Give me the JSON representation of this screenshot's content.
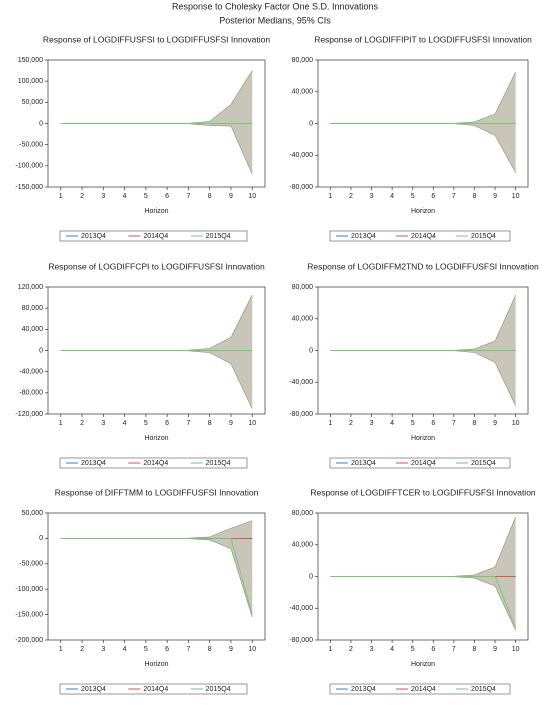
{
  "title": "Response to Cholesky Factor One S.D. Innovations",
  "subtitle": "Posterior Medians, 95% CIs",
  "chart_data": [
    {
      "type": "line",
      "title": "Response of LOGDIFFUSFSI to LOGDIFFUSFSI Innovation",
      "x_label": "Horizon",
      "x": [
        1,
        2,
        3,
        4,
        5,
        6,
        7,
        8,
        9,
        10
      ],
      "xlim": [
        0.4,
        10.6
      ],
      "xticks": [
        1,
        2,
        3,
        4,
        5,
        6,
        7,
        8,
        9,
        10
      ],
      "ylim": [
        -150000,
        150000
      ],
      "yticks": [
        {
          "value": -150000,
          "label": "-150,000"
        },
        {
          "value": -100000,
          "label": "-100,000"
        },
        {
          "value": -50000,
          "label": "-50,000"
        },
        0,
        {
          "value": 50000,
          "label": "50,000"
        },
        {
          "value": 100000,
          "label": "100,000"
        },
        {
          "value": 150000,
          "label": "150,000"
        }
      ],
      "band": {
        "color": "#c9c5b9",
        "upper": [
          0,
          0,
          0,
          0,
          0,
          0,
          500,
          5000,
          45000,
          125000
        ],
        "lower": [
          0,
          0,
          0,
          0,
          0,
          0,
          -500,
          -5000,
          -6000,
          -120000
        ]
      },
      "series": [
        {
          "name": "2013Q4",
          "color": "#3b7dd8",
          "values": [
            0,
            0,
            0,
            0,
            0,
            0,
            0,
            0,
            0,
            0
          ]
        },
        {
          "name": "2014Q4",
          "color": "#e0504f",
          "values": [
            0,
            0,
            0,
            0,
            0,
            0,
            0,
            0,
            0,
            0
          ]
        },
        {
          "name": "2015Q4",
          "color": "#6ccf6c",
          "values": [
            0,
            0,
            0,
            0,
            0,
            0,
            0,
            0,
            0,
            0
          ]
        }
      ]
    },
    {
      "type": "line",
      "title": "Response of LOGDIFFIPIT to LOGDIFFUSFSI Innovation",
      "x_label": "Horizon",
      "x": [
        1,
        2,
        3,
        4,
        5,
        6,
        7,
        8,
        9,
        10
      ],
      "xlim": [
        0.4,
        10.6
      ],
      "xticks": [
        1,
        2,
        3,
        4,
        5,
        6,
        7,
        8,
        9,
        10
      ],
      "ylim": [
        -80000,
        80000
      ],
      "yticks": [
        {
          "value": -80000,
          "label": "-80,000"
        },
        {
          "value": -40000,
          "label": "-40,000"
        },
        0,
        {
          "value": 40000,
          "label": "40,000"
        },
        {
          "value": 80000,
          "label": "80,000"
        }
      ],
      "band": {
        "color": "#c9c5b9",
        "upper": [
          0,
          0,
          0,
          0,
          0,
          0,
          300,
          2000,
          12000,
          65000
        ],
        "lower": [
          0,
          0,
          0,
          0,
          0,
          0,
          -300,
          -2500,
          -15000,
          -62000
        ]
      },
      "series": [
        {
          "name": "2013Q4",
          "color": "#3b7dd8",
          "values": [
            0,
            0,
            0,
            0,
            0,
            0,
            0,
            0,
            0,
            0
          ]
        },
        {
          "name": "2014Q4",
          "color": "#e0504f",
          "values": [
            0,
            0,
            0,
            0,
            0,
            0,
            0,
            0,
            0,
            0
          ]
        },
        {
          "name": "2015Q4",
          "color": "#6ccf6c",
          "values": [
            0,
            0,
            0,
            0,
            0,
            0,
            0,
            0,
            0,
            0
          ]
        }
      ]
    },
    {
      "type": "line",
      "title": "Response of LOGDIFFCPI to LOGDIFFUSFSI Innovation",
      "x_label": "Horizon",
      "x": [
        1,
        2,
        3,
        4,
        5,
        6,
        7,
        8,
        9,
        10
      ],
      "xlim": [
        0.4,
        10.6
      ],
      "xticks": [
        1,
        2,
        3,
        4,
        5,
        6,
        7,
        8,
        9,
        10
      ],
      "ylim": [
        -120000,
        120000
      ],
      "yticks": [
        {
          "value": -120000,
          "label": "-120,000"
        },
        {
          "value": -80000,
          "label": "-80,000"
        },
        {
          "value": -40000,
          "label": "-40,000"
        },
        0,
        {
          "value": 40000,
          "label": "40,000"
        },
        {
          "value": 80000,
          "label": "80,000"
        },
        {
          "value": 120000,
          "label": "120,000"
        }
      ],
      "band": {
        "color": "#c9c5b9",
        "upper": [
          0,
          0,
          0,
          0,
          0,
          0,
          500,
          4000,
          25000,
          105000
        ],
        "lower": [
          0,
          0,
          0,
          0,
          0,
          0,
          -500,
          -4000,
          -25000,
          -110000
        ]
      },
      "series": [
        {
          "name": "2013Q4",
          "color": "#3b7dd8",
          "values": [
            0,
            0,
            0,
            0,
            0,
            0,
            0,
            0,
            0,
            0
          ]
        },
        {
          "name": "2014Q4",
          "color": "#e0504f",
          "values": [
            0,
            0,
            0,
            0,
            0,
            0,
            0,
            0,
            0,
            0
          ]
        },
        {
          "name": "2015Q4",
          "color": "#6ccf6c",
          "values": [
            0,
            0,
            0,
            0,
            0,
            0,
            0,
            0,
            0,
            0
          ]
        }
      ]
    },
    {
      "type": "line",
      "title": "Response of LOGDIFFM2TND to LOGDIFFUSFSI Innovation",
      "x_label": "Horizon",
      "x": [
        1,
        2,
        3,
        4,
        5,
        6,
        7,
        8,
        9,
        10
      ],
      "xlim": [
        0.4,
        10.6
      ],
      "xticks": [
        1,
        2,
        3,
        4,
        5,
        6,
        7,
        8,
        9,
        10
      ],
      "ylim": [
        -80000,
        80000
      ],
      "yticks": [
        {
          "value": -80000,
          "label": "-80,000"
        },
        {
          "value": -40000,
          "label": "-40,000"
        },
        0,
        {
          "value": 40000,
          "label": "40,000"
        },
        {
          "value": 80000,
          "label": "80,000"
        }
      ],
      "band": {
        "color": "#c9c5b9",
        "upper": [
          0,
          0,
          0,
          0,
          0,
          0,
          300,
          2000,
          12000,
          70000
        ],
        "lower": [
          0,
          0,
          0,
          0,
          0,
          0,
          -300,
          -2500,
          -15000,
          -70000
        ]
      },
      "series": [
        {
          "name": "2013Q4",
          "color": "#3b7dd8",
          "values": [
            0,
            0,
            0,
            0,
            0,
            0,
            0,
            0,
            0,
            0
          ]
        },
        {
          "name": "2014Q4",
          "color": "#e0504f",
          "values": [
            0,
            0,
            0,
            0,
            0,
            0,
            0,
            0,
            0,
            0
          ]
        },
        {
          "name": "2015Q4",
          "color": "#6ccf6c",
          "values": [
            0,
            0,
            0,
            0,
            0,
            0,
            0,
            0,
            0,
            0
          ]
        }
      ]
    },
    {
      "type": "line",
      "title": "Response of DIFFTMM to LOGDIFFUSFSI Innovation",
      "x_label": "Horizon",
      "x": [
        1,
        2,
        3,
        4,
        5,
        6,
        7,
        8,
        9,
        10
      ],
      "xlim": [
        0.4,
        10.6
      ],
      "xticks": [
        1,
        2,
        3,
        4,
        5,
        6,
        7,
        8,
        9,
        10
      ],
      "ylim": [
        -200000,
        50000
      ],
      "yticks": [
        {
          "value": -200000,
          "label": "-200,000"
        },
        {
          "value": -150000,
          "label": "-150,000"
        },
        {
          "value": -100000,
          "label": "-100,000"
        },
        {
          "value": -50000,
          "label": "-50,000"
        },
        0,
        {
          "value": 50000,
          "label": "50,000"
        }
      ],
      "band": {
        "color": "#c9c5b9",
        "upper": [
          0,
          0,
          0,
          0,
          0,
          0,
          500,
          3000,
          20000,
          35000
        ],
        "lower": [
          0,
          0,
          0,
          0,
          0,
          0,
          -500,
          -3000,
          -20000,
          -155000
        ]
      },
      "series": [
        {
          "name": "2013Q4",
          "color": "#3b7dd8",
          "values": [
            0,
            0,
            0,
            0,
            0,
            0,
            0,
            0,
            0,
            0
          ]
        },
        {
          "name": "2014Q4",
          "color": "#e0504f",
          "values": [
            0,
            0,
            0,
            0,
            0,
            0,
            0,
            0,
            0,
            0
          ]
        },
        {
          "name": "2015Q4",
          "color": "#6ccf6c",
          "values": [
            0,
            0,
            0,
            0,
            0,
            0,
            0,
            0,
            0,
            -150000
          ]
        }
      ]
    },
    {
      "type": "line",
      "title": "Response of LOGDIFFTCER to LOGDIFFUSFSI Innovation",
      "x_label": "Horizon",
      "x": [
        1,
        2,
        3,
        4,
        5,
        6,
        7,
        8,
        9,
        10
      ],
      "xlim": [
        0.4,
        10.6
      ],
      "xticks": [
        1,
        2,
        3,
        4,
        5,
        6,
        7,
        8,
        9,
        10
      ],
      "ylim": [
        -80000,
        80000
      ],
      "yticks": [
        {
          "value": -80000,
          "label": "-80,000"
        },
        {
          "value": -40000,
          "label": "-40,000"
        },
        0,
        {
          "value": 40000,
          "label": "40,000"
        },
        {
          "value": 80000,
          "label": "80,000"
        }
      ],
      "band": {
        "color": "#c9c5b9",
        "upper": [
          0,
          0,
          0,
          0,
          0,
          0,
          300,
          2000,
          12000,
          75000
        ],
        "lower": [
          0,
          0,
          0,
          0,
          0,
          0,
          -300,
          -2000,
          -12000,
          -68000
        ]
      },
      "series": [
        {
          "name": "2013Q4",
          "color": "#3b7dd8",
          "values": [
            0,
            0,
            0,
            0,
            0,
            0,
            0,
            0,
            0,
            0
          ]
        },
        {
          "name": "2014Q4",
          "color": "#e0504f",
          "values": [
            0,
            0,
            0,
            0,
            0,
            0,
            0,
            0,
            0,
            0
          ]
        },
        {
          "name": "2015Q4",
          "color": "#6ccf6c",
          "values": [
            0,
            0,
            0,
            0,
            0,
            0,
            0,
            0,
            0,
            -65000
          ]
        }
      ]
    }
  ]
}
